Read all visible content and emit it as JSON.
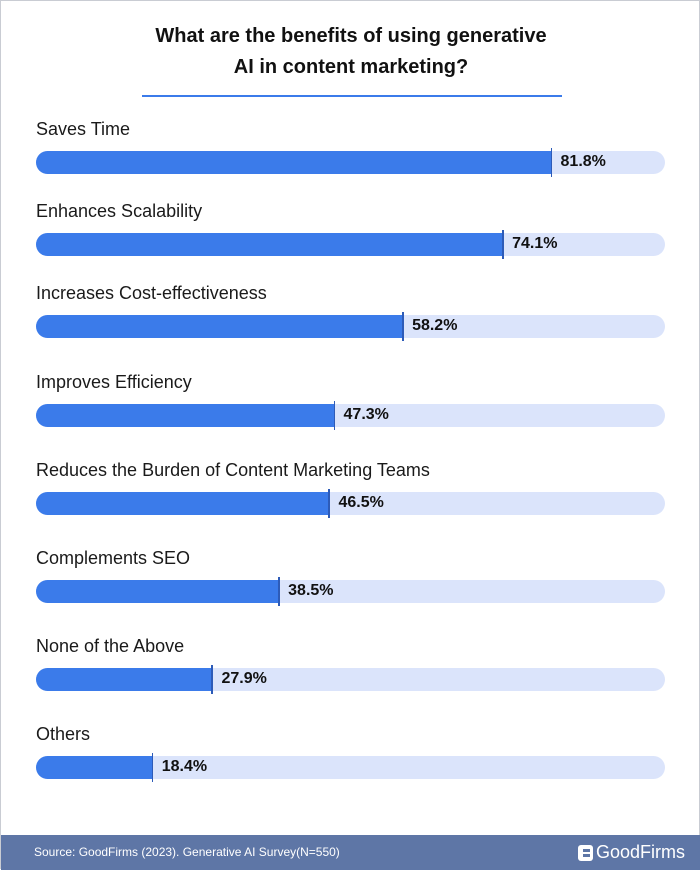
{
  "chart_data": {
    "type": "bar",
    "orientation": "horizontal",
    "title": "What are the benefits of using generative AI in content marketing?",
    "title_lines": [
      "What are the benefits of using generative",
      "AI in content marketing?"
    ],
    "categories": [
      "Saves Time",
      "Enhances Scalability",
      "Increases Cost-effectiveness",
      "Improves Efficiency",
      "Reduces the Burden of Content Marketing Teams",
      "Complements SEO",
      "None of the Above",
      "Others"
    ],
    "values": [
      81.8,
      74.1,
      58.2,
      47.3,
      46.5,
      38.5,
      27.9,
      18.4
    ],
    "value_labels": [
      "81.8%",
      "74.1%",
      "58.2%",
      "47.3%",
      "46.5%",
      "38.5%",
      "27.9%",
      "18.4%"
    ],
    "xlim": [
      0,
      100
    ],
    "colors": {
      "fill": "#3b7bea",
      "track": "#dbe4fb"
    }
  },
  "footer": {
    "source": "Source: GoodFirms (2023). Generative AI Survey(N=550)",
    "brand": "GoodFirms"
  }
}
